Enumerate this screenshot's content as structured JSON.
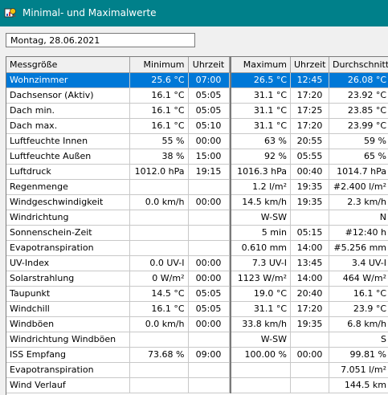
{
  "window": {
    "title": "Minimal- und Maximalwerte",
    "icon": "weather-station-icon"
  },
  "date": "Montag, 28.06.2021",
  "columns": [
    "Messgröße",
    "Minimum",
    "Uhrzeit",
    "Maximum",
    "Uhrzeit",
    "Durchschnitt"
  ],
  "selected_row": 0,
  "colors": {
    "titlebar": "#00808a",
    "selection": "#0078d7"
  },
  "rows": [
    [
      "Wohnzimmer",
      "25.6 °C",
      "07:00",
      "26.5 °C",
      "12:45",
      "26.08 °C"
    ],
    [
      "Dachsensor (Aktiv)",
      "16.1 °C",
      "05:05",
      "31.1 °C",
      "17:20",
      "23.92 °C"
    ],
    [
      "Dach min.",
      "16.1 °C",
      "05:05",
      "31.1 °C",
      "17:25",
      "23.85 °C"
    ],
    [
      "Dach max.",
      "16.1 °C",
      "05:10",
      "31.1 °C",
      "17:20",
      "23.99 °C"
    ],
    [
      "Luftfeuchte Innen",
      "55 %",
      "00:00",
      "63 %",
      "20:55",
      "59 %"
    ],
    [
      "Luftfeuchte Außen",
      "38 %",
      "15:00",
      "92 %",
      "05:55",
      "65 %"
    ],
    [
      "Luftdruck",
      "1012.0 hPa",
      "19:15",
      "1016.3 hPa",
      "00:40",
      "1014.7 hPa"
    ],
    [
      "Regenmenge",
      "",
      "",
      "1.2 l/m²",
      "19:35",
      "#2.400 l/m²"
    ],
    [
      "Windgeschwindigkeit",
      "0.0 km/h",
      "00:00",
      "14.5 km/h",
      "19:35",
      "2.3 km/h"
    ],
    [
      "Windrichtung",
      "",
      "",
      "W-SW",
      "",
      "N"
    ],
    [
      "Sonnenschein-Zeit",
      "",
      "",
      "5 min",
      "05:15",
      "#12:40 h"
    ],
    [
      "Evapotranspiration",
      "",
      "",
      "0.610 mm",
      "14:00",
      "#5.256 mm"
    ],
    [
      "UV-Index",
      "0.0 UV-I",
      "00:00",
      "7.3 UV-I",
      "13:45",
      "3.4 UV-I"
    ],
    [
      "Solarstrahlung",
      "0 W/m²",
      "00:00",
      "1123 W/m²",
      "14:00",
      "464 W/m²"
    ],
    [
      "Taupunkt",
      "14.5 °C",
      "05:05",
      "19.0 °C",
      "20:40",
      "16.1 °C"
    ],
    [
      "Windchill",
      "16.1 °C",
      "05:05",
      "31.1 °C",
      "17:20",
      "23.9 °C"
    ],
    [
      "Windböen",
      "0.0 km/h",
      "00:00",
      "33.8 km/h",
      "19:35",
      "6.8 km/h"
    ],
    [
      "Windrichtung Windböen",
      "",
      "",
      "W-SW",
      "",
      "S"
    ],
    [
      "ISS Empfang",
      "73.68 %",
      "09:00",
      "100.00 %",
      "00:00",
      "99.81 %"
    ],
    [
      "Evapotranspiration",
      "",
      "",
      "",
      "",
      "7.051 l/m²"
    ],
    [
      "Wind Verlauf",
      "",
      "",
      "",
      "",
      "144.5 km"
    ]
  ]
}
